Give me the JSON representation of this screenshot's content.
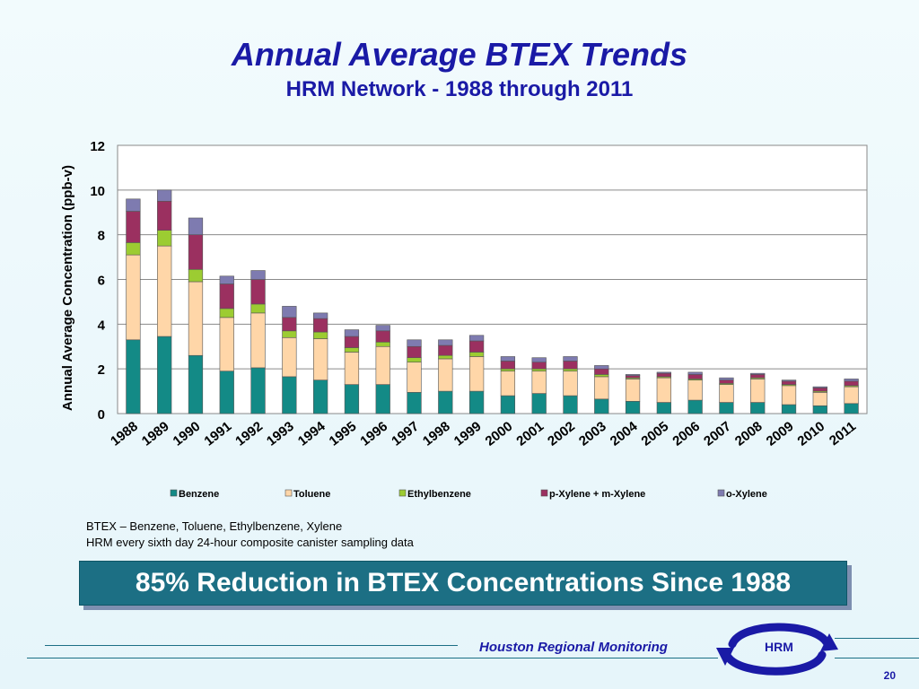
{
  "slide": {
    "title": "Annual Average BTEX Trends",
    "subtitle": "HRM Network - 1988 through 2011",
    "notes": [
      "BTEX – Benzene, Toluene, Ethylbenzene, Xylene",
      "HRM every sixth day 24-hour composite canister sampling data"
    ],
    "banner": "85% Reduction in BTEX Concentrations Since 1988",
    "footer": "Houston Regional Monitoring",
    "logo_text": "HRM",
    "page_number": "20"
  },
  "colors": {
    "title": "#1a1aa6",
    "banner": "#1c6f84",
    "benzene": "#138a86",
    "toluene": "#ffd6a8",
    "ethylbenzene": "#9ccc32",
    "pmxylene": "#9b3060",
    "oxylene": "#7e7bb0",
    "logo": "#1a1aa6"
  },
  "chart_data": {
    "type": "bar",
    "stacked": true,
    "title": "",
    "xlabel": "",
    "ylabel": "Annual Average Concentration (ppb-v)",
    "ylim": [
      0,
      12
    ],
    "yticks": [
      0,
      2,
      4,
      6,
      8,
      10,
      12
    ],
    "grid": true,
    "legend_position": "bottom",
    "categories": [
      "1988",
      "1989",
      "1990",
      "1991",
      "1992",
      "1993",
      "1994",
      "1995",
      "1996",
      "1997",
      "1998",
      "1999",
      "2000",
      "2001",
      "2002",
      "2003",
      "2004",
      "2005",
      "2006",
      "2007",
      "2008",
      "2009",
      "2010",
      "2011"
    ],
    "series": [
      {
        "name": "Benzene",
        "color": "#138a86",
        "values": [
          3.3,
          3.45,
          2.6,
          1.9,
          2.05,
          1.65,
          1.5,
          1.3,
          1.3,
          0.95,
          1.0,
          1.0,
          0.8,
          0.9,
          0.8,
          0.65,
          0.55,
          0.5,
          0.6,
          0.5,
          0.5,
          0.4,
          0.35,
          0.45
        ]
      },
      {
        "name": "Toluene",
        "color": "#ffd6a8",
        "values": [
          3.8,
          4.05,
          3.3,
          2.4,
          2.45,
          1.75,
          1.85,
          1.45,
          1.7,
          1.35,
          1.45,
          1.55,
          1.1,
          1.0,
          1.1,
          1.0,
          1.0,
          1.1,
          0.9,
          0.8,
          1.05,
          0.85,
          0.6,
          0.75
        ]
      },
      {
        "name": "Ethylbenzene",
        "color": "#9ccc32",
        "values": [
          0.55,
          0.7,
          0.55,
          0.4,
          0.4,
          0.3,
          0.3,
          0.2,
          0.2,
          0.2,
          0.15,
          0.2,
          0.1,
          0.1,
          0.1,
          0.1,
          0.05,
          0.05,
          0.05,
          0.05,
          0.05,
          0.05,
          0.05,
          0.05
        ]
      },
      {
        "name": "p-Xylene + m-Xylene",
        "color": "#9b3060",
        "values": [
          1.4,
          1.3,
          1.55,
          1.1,
          1.1,
          0.6,
          0.6,
          0.5,
          0.5,
          0.5,
          0.45,
          0.5,
          0.35,
          0.3,
          0.35,
          0.25,
          0.1,
          0.15,
          0.2,
          0.15,
          0.15,
          0.15,
          0.15,
          0.2
        ]
      },
      {
        "name": "o-Xylene",
        "color": "#7e7bb0",
        "values": [
          0.55,
          0.5,
          0.75,
          0.35,
          0.4,
          0.5,
          0.25,
          0.3,
          0.25,
          0.3,
          0.25,
          0.25,
          0.2,
          0.2,
          0.2,
          0.15,
          0.05,
          0.05,
          0.1,
          0.1,
          0.05,
          0.05,
          0.05,
          0.1
        ]
      }
    ]
  }
}
